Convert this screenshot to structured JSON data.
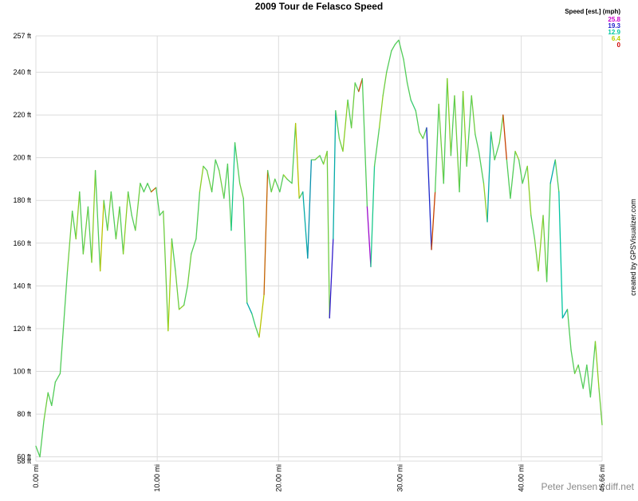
{
  "chart_data": {
    "type": "line",
    "title": "2009 Tour de Felasco Speed",
    "credit": "created by GPSVisualizer.com",
    "watermark": "Peter Jensen / diff.net",
    "legend": {
      "title": "Speed [est.] (mph)",
      "scale": [
        {
          "value": 25.8,
          "color": "#cc00cc"
        },
        {
          "value": 19.3,
          "color": "#2020cc"
        },
        {
          "value": 12.9,
          "color": "#00c8a0"
        },
        {
          "value": 6.4,
          "color": "#b8d000"
        },
        {
          "value": 0.0,
          "color": "#cc0000"
        }
      ]
    },
    "grid": true,
    "xlim": [
      0,
      46.66
    ],
    "xticks": [
      {
        "value": 0,
        "label": "0.00 mi"
      },
      {
        "value": 10,
        "label": "10.00 mi"
      },
      {
        "value": 20,
        "label": "20.00 mi"
      },
      {
        "value": 30,
        "label": "30.00 mi"
      },
      {
        "value": 40,
        "label": "40.00 mi"
      },
      {
        "value": 46.66,
        "label": "46.66 mi"
      }
    ],
    "ylim": [
      58,
      257
    ],
    "yticks": [
      {
        "value": 58,
        "label": "58 ft"
      },
      {
        "value": 60,
        "label": "60 ft"
      },
      {
        "value": 80,
        "label": "80 ft"
      },
      {
        "value": 100,
        "label": "100 ft"
      },
      {
        "value": 120,
        "label": "120 ft"
      },
      {
        "value": 140,
        "label": "140 ft"
      },
      {
        "value": 160,
        "label": "160 ft"
      },
      {
        "value": 180,
        "label": "180 ft"
      },
      {
        "value": 200,
        "label": "200 ft"
      },
      {
        "value": 220,
        "label": "220 ft"
      },
      {
        "value": 240,
        "label": "240 ft"
      },
      {
        "value": 257,
        "label": "257 ft"
      }
    ],
    "x": [
      0,
      0.33,
      0.66,
      1.0,
      1.3,
      1.6,
      2.0,
      2.3,
      2.6,
      3.0,
      3.3,
      3.6,
      3.9,
      4.3,
      4.6,
      4.9,
      5.3,
      5.6,
      5.9,
      6.2,
      6.6,
      6.9,
      7.2,
      7.6,
      7.9,
      8.2,
      8.6,
      8.9,
      9.2,
      9.5,
      9.9,
      10.2,
      10.5,
      10.9,
      11.2,
      11.5,
      11.8,
      12.2,
      12.5,
      12.8,
      13.2,
      13.5,
      13.8,
      14.1,
      14.5,
      14.8,
      15.1,
      15.5,
      15.8,
      16.1,
      16.4,
      16.8,
      17.1,
      17.4,
      17.8,
      18.1,
      18.4,
      18.8,
      19.1,
      19.4,
      19.7,
      20.1,
      20.4,
      20.7,
      21.1,
      21.4,
      21.7,
      22.0,
      22.4,
      22.7,
      23.0,
      23.4,
      23.7,
      24.0,
      24.2,
      24.5,
      24.7,
      25.0,
      25.3,
      25.7,
      26.0,
      26.3,
      26.6,
      26.9,
      27.3,
      27.6,
      27.9,
      28.3,
      28.6,
      28.9,
      29.3,
      29.6,
      29.9,
      30.3,
      30.6,
      30.9,
      31.3,
      31.6,
      31.9,
      32.2,
      32.6,
      32.9,
      33.2,
      33.6,
      33.9,
      34.2,
      34.5,
      34.9,
      35.2,
      35.5,
      35.9,
      36.2,
      36.5,
      36.9,
      37.2,
      37.5,
      37.8,
      38.2,
      38.5,
      38.8,
      39.1,
      39.5,
      39.8,
      40.1,
      40.5,
      40.8,
      41.1,
      41.4,
      41.8,
      42.1,
      42.4,
      42.8,
      43.1,
      43.4,
      43.8,
      44.1,
      44.4,
      44.7,
      45.1,
      45.4,
      45.7,
      46.1,
      46.4,
      46.66
    ],
    "series": [
      {
        "name": "Elevation",
        "values": [
          65,
          60,
          77,
          90,
          84,
          95,
          99,
          123,
          147,
          175,
          162,
          184,
          155,
          177,
          151,
          194,
          147,
          180,
          166,
          184,
          162,
          177,
          155,
          184,
          173,
          166,
          188,
          184,
          188,
          184,
          186,
          173,
          175,
          119,
          162,
          147,
          129,
          131,
          140,
          155,
          162,
          184,
          196,
          194,
          184,
          199,
          194,
          181,
          197,
          166,
          207,
          188,
          181,
          132,
          127,
          121,
          116,
          136,
          194,
          184,
          190,
          184,
          192,
          190,
          188,
          216,
          181,
          184,
          153,
          199,
          199,
          201,
          197,
          203,
          125,
          162,
          222,
          209,
          203,
          227,
          214,
          235,
          231,
          237,
          177,
          149,
          196,
          214,
          229,
          240,
          250,
          253,
          255,
          246,
          235,
          227,
          222,
          212,
          209,
          214,
          157,
          184,
          225,
          188,
          237,
          201,
          229,
          184,
          231,
          196,
          229,
          211,
          203,
          188,
          170,
          212,
          199,
          207,
          220,
          199,
          181,
          203,
          199,
          188,
          196,
          173,
          162,
          147,
          173,
          142,
          188,
          199,
          184,
          125,
          129,
          110,
          99,
          103,
          92,
          103,
          88,
          114,
          92,
          75
        ],
        "speed": [
          10,
          10,
          9,
          10,
          10,
          10,
          10,
          10,
          9,
          10,
          8,
          10,
          9,
          10,
          8,
          10,
          6,
          10,
          9,
          10,
          9,
          10,
          8,
          10,
          10,
          9,
          10,
          10,
          10,
          3,
          10,
          10,
          9,
          7,
          10,
          9,
          8,
          10,
          9,
          10,
          10,
          8,
          10,
          9,
          10,
          10,
          9,
          10,
          10,
          12,
          10,
          9,
          10,
          14,
          11,
          10,
          6,
          3,
          10,
          9,
          10,
          10,
          8,
          10,
          10,
          6,
          10,
          14,
          15,
          10,
          9,
          10,
          8,
          9,
          20,
          14,
          10,
          9,
          8,
          10,
          9,
          10,
          2,
          10,
          24,
          12,
          10,
          8,
          9,
          10,
          10,
          10,
          10,
          10,
          10,
          11,
          10,
          9,
          10,
          19,
          2,
          10,
          9,
          10,
          8,
          10,
          9,
          10,
          8,
          10,
          9,
          10,
          10,
          8,
          14,
          10,
          10,
          9,
          2,
          10,
          10,
          8,
          10,
          10,
          8,
          10,
          9,
          8,
          9,
          10,
          14,
          10,
          13,
          14,
          10,
          10,
          9,
          10,
          10,
          10,
          10,
          8,
          9,
          0
        ]
      }
    ]
  }
}
